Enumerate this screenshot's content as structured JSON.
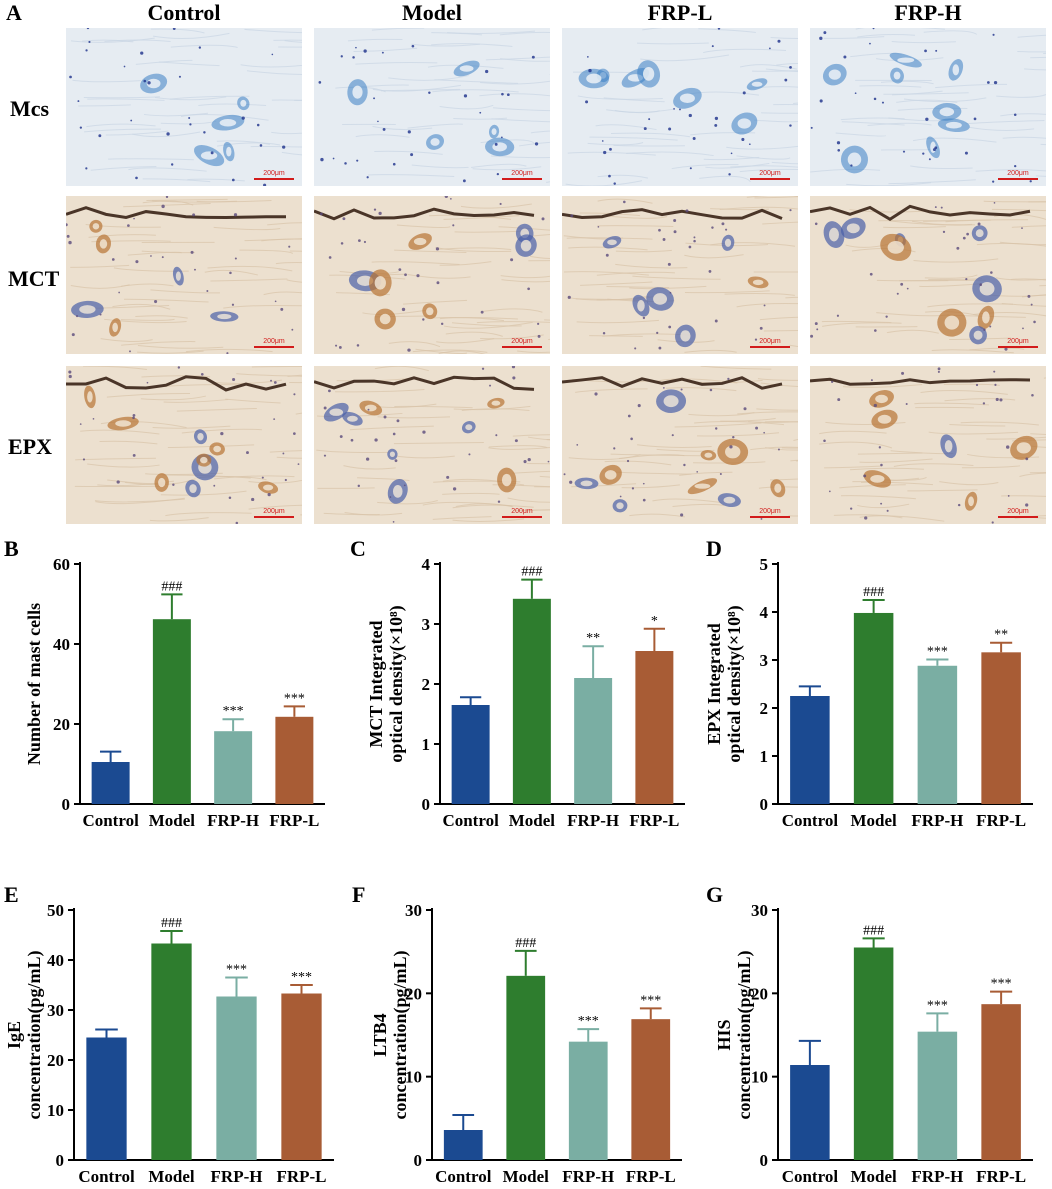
{
  "figure": {
    "panel_a_label": "A",
    "columns": [
      "Control",
      "Model",
      "FRP-L",
      "FRP-H"
    ],
    "rows": [
      "Mcs",
      "MCT",
      "EPX"
    ],
    "scale_bar": "200μm"
  },
  "colors": {
    "Control": "#1b4a91",
    "Model": "#2e7d2e",
    "FRP-H": "#7aaea3",
    "FRP-L": "#a85c35",
    "toluidine_bg": "#e6ecf2",
    "toluidine_stain": "#3a7fc4",
    "ihc_bg": "#ece0cf",
    "ihc_brown": "#b87333",
    "ihc_blue": "#4a5fa8"
  },
  "chart_data": [
    {
      "panel": "B",
      "type": "bar",
      "categories": [
        "Control",
        "Model",
        "FRP-H",
        "FRP-L"
      ],
      "values": [
        10.5,
        46.2,
        18.2,
        21.8
      ],
      "errors": [
        2.6,
        6.2,
        3.0,
        2.6
      ],
      "annotations": [
        "",
        "###",
        "***",
        "***"
      ],
      "ylabel_lines": [
        "Number of mast cells"
      ],
      "ylim": [
        0,
        60
      ],
      "yticks": [
        0,
        20,
        40,
        60
      ]
    },
    {
      "panel": "C",
      "type": "bar",
      "categories": [
        "Control",
        "Model",
        "FRP-H",
        "FRP-L"
      ],
      "values": [
        1.65,
        3.42,
        2.1,
        2.55
      ],
      "errors": [
        0.13,
        0.32,
        0.53,
        0.37
      ],
      "annotations": [
        "",
        "###",
        "**",
        "*"
      ],
      "ylabel_lines": [
        "MCT Integrated",
        "optical density(×10⁸)"
      ],
      "ylim": [
        0,
        4
      ],
      "yticks": [
        0,
        1,
        2,
        3,
        4
      ]
    },
    {
      "panel": "D",
      "type": "bar",
      "categories": [
        "Control",
        "Model",
        "FRP-H",
        "FRP-L"
      ],
      "values": [
        2.25,
        3.98,
        2.88,
        3.16
      ],
      "errors": [
        0.2,
        0.27,
        0.13,
        0.2
      ],
      "annotations": [
        "",
        "###",
        "***",
        "**"
      ],
      "ylabel_lines": [
        "EPX Integrated",
        "optical density(×10⁸)"
      ],
      "ylim": [
        0,
        5
      ],
      "yticks": [
        0,
        1,
        2,
        3,
        4,
        5
      ]
    },
    {
      "panel": "E",
      "type": "bar",
      "categories": [
        "Control",
        "Model",
        "FRP-H",
        "FRP-L"
      ],
      "values": [
        24.5,
        43.3,
        32.7,
        33.3
      ],
      "errors": [
        1.6,
        2.5,
        3.8,
        1.7
      ],
      "annotations": [
        "",
        "###",
        "***",
        "***"
      ],
      "ylabel_lines": [
        "IgE",
        "concentration(pg/mL)"
      ],
      "ylim": [
        0,
        50
      ],
      "yticks": [
        0,
        10,
        20,
        30,
        40,
        50
      ]
    },
    {
      "panel": "F",
      "type": "bar",
      "categories": [
        "Control",
        "Model",
        "FRP-H",
        "FRP-L"
      ],
      "values": [
        3.6,
        22.1,
        14.2,
        16.9
      ],
      "errors": [
        1.8,
        3.0,
        1.5,
        1.3
      ],
      "annotations": [
        "",
        "###",
        "***",
        "***"
      ],
      "ylabel_lines": [
        "LTB4",
        "concentration(pg/mL)"
      ],
      "ylim": [
        0,
        30
      ],
      "yticks": [
        0,
        10,
        20,
        30
      ]
    },
    {
      "panel": "G",
      "type": "bar",
      "categories": [
        "Control",
        "Model",
        "FRP-H",
        "FRP-L"
      ],
      "values": [
        11.4,
        25.5,
        15.4,
        18.7
      ],
      "errors": [
        2.9,
        1.1,
        2.2,
        1.5
      ],
      "annotations": [
        "",
        "###",
        "***",
        "***"
      ],
      "ylabel_lines": [
        "HIS",
        "concentration(pg/mL)"
      ],
      "ylim": [
        0,
        30
      ],
      "yticks": [
        0,
        10,
        20,
        30
      ]
    }
  ]
}
